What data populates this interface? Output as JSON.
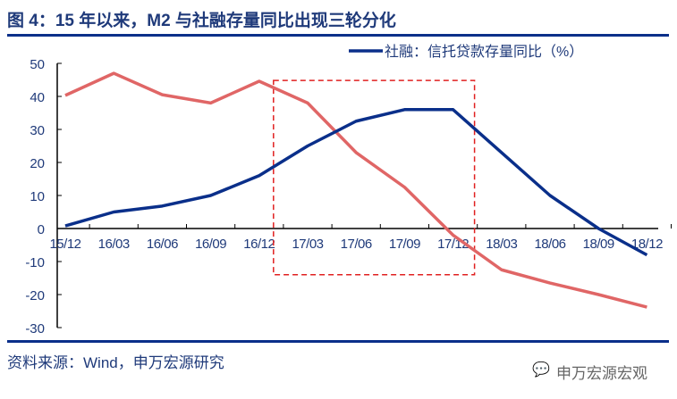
{
  "title": "图 4：15 年以来，M2 与社融存量同比出现三轮分化",
  "source": "资料来源：Wind，申万宏源研究",
  "watermark": "申万宏源宏观",
  "watermark_icon": "wechat-icon",
  "chart_data": {
    "type": "line",
    "categories": [
      "15/12",
      "16/03",
      "16/06",
      "16/09",
      "16/12",
      "17/03",
      "17/06",
      "17/09",
      "17/12",
      "18/03",
      "18/06",
      "18/09",
      "18/12"
    ],
    "yticks": [
      50,
      40,
      30,
      20,
      10,
      0,
      -10,
      -20,
      -30
    ],
    "ylim": [
      -30,
      50
    ],
    "grid": false,
    "legend_position": "top-right",
    "series": [
      {
        "values": [
          40.3,
          47,
          40.5,
          38,
          44.6,
          38,
          23,
          12.5,
          -2,
          -12.5,
          -16.5,
          -20,
          -23.8
        ],
        "color": "#e06666"
      },
      {
        "name": "社融：信托贷款存量同比（%）",
        "values": [
          0.8,
          5,
          6.8,
          10,
          16,
          25,
          32.5,
          36,
          36,
          23,
          10,
          0,
          -8
        ],
        "color": "#0a2f8a"
      }
    ],
    "highlight_box": {
      "x_from": "16/12",
      "x_to": "17/12",
      "y_from": -14,
      "y_to": 47,
      "color": "#e02020",
      "style": "dashed"
    }
  }
}
